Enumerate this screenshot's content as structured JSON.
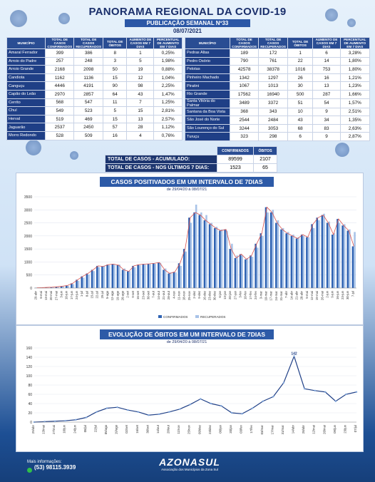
{
  "header": {
    "title": "PANORAMA REGIONAL DA COVID-19",
    "publication": "PUBLICAÇÃO SEMANAL Nº33",
    "date": "08/07/2021"
  },
  "table_headers": [
    "MUNICÍPIO",
    "TOTAL DE CASOS CONFIRMADOS",
    "TOTAL DE CASOS RECUPERADOS",
    "TOTAL DE ÓBITOS",
    "AUMENTO DE CASOS EM 7 DIAS",
    "PERCENTUAL DE AUMENTO EM 7 DIAS"
  ],
  "table_left": [
    [
      "Amaral Ferrador",
      "399",
      "386",
      "8",
      "1",
      "0,25%"
    ],
    [
      "Arroio do Padre",
      "257",
      "248",
      "3",
      "5",
      "1,98%"
    ],
    [
      "Arroio Grande",
      "2168",
      "2098",
      "50",
      "19",
      "0,88%"
    ],
    [
      "Candiota",
      "1162",
      "1136",
      "15",
      "12",
      "1,04%"
    ],
    [
      "Canguçu",
      "4446",
      "4191",
      "90",
      "98",
      "2,25%"
    ],
    [
      "Capão do Leão",
      "2970",
      "2857",
      "64",
      "43",
      "1,47%"
    ],
    [
      "Cerrito",
      "568",
      "547",
      "11",
      "7",
      "1,25%"
    ],
    [
      "Chuí",
      "549",
      "523",
      "5",
      "15",
      "2,81%"
    ],
    [
      "Herval",
      "519",
      "469",
      "15",
      "13",
      "2,57%"
    ],
    [
      "Jaguarão",
      "2537",
      "2450",
      "57",
      "28",
      "1,12%"
    ],
    [
      "Morro Redondo",
      "528",
      "509",
      "16",
      "4",
      "0,76%"
    ]
  ],
  "table_right": [
    [
      "Pedras Altas",
      "189",
      "172",
      "1",
      "6",
      "3,28%"
    ],
    [
      "Pedro Osório",
      "790",
      "761",
      "22",
      "14",
      "1,80%"
    ],
    [
      "Pelotas",
      "42578",
      "38378",
      "1016",
      "753",
      "1,80%"
    ],
    [
      "Pinheiro Machado",
      "1342",
      "1297",
      "26",
      "16",
      "1,21%"
    ],
    [
      "Piratini",
      "1067",
      "1013",
      "30",
      "13",
      "1,23%"
    ],
    [
      "Rio Grande",
      "17562",
      "16940",
      "500",
      "287",
      "1,66%"
    ],
    [
      "Santa Vitória do Palmar",
      "3489",
      "3372",
      "51",
      "54",
      "1,57%"
    ],
    [
      "Santana da Boa Vista",
      "368",
      "343",
      "10",
      "9",
      "2,51%"
    ],
    [
      "São José do Norte",
      "2544",
      "2484",
      "43",
      "34",
      "1,35%"
    ],
    [
      "São Lourenço do Sul",
      "3244",
      "3053",
      "68",
      "83",
      "2,63%"
    ],
    [
      "Turuçu",
      "323",
      "298",
      "6",
      "9",
      "2,87%"
    ]
  ],
  "totals": {
    "col_confirmed": "CONFIRMADOS",
    "col_deaths": "ÓBITOS",
    "row1_label": "TOTAL DE CASOS - ACUMULADO:",
    "row1_confirmed": "89599",
    "row1_deaths": "2107",
    "row2_label": "TOTAL DE CASOS - NOS ÚLTIMOS 7 DIAS:",
    "row2_confirmed": "1523",
    "row2_deaths": "65"
  },
  "chart_data": [
    {
      "type": "bar",
      "title": "CASOS POSITIVADOS EM UM INTERVALO DE 7DIAS",
      "subtitle": "de 29/04/20 à 08/07/21",
      "ylim": [
        0,
        3500
      ],
      "yticks": [
        0,
        500,
        1000,
        1500,
        2000,
        2500,
        3000,
        3500
      ],
      "categories": [
        "29-abr",
        "6-mai",
        "13-mai",
        "20-mai",
        "27-mai",
        "3-jun",
        "10-jun",
        "17-jun",
        "24-jun",
        "1-jul",
        "8-jul",
        "15-jul",
        "22-jul",
        "29-jul",
        "5-ago",
        "12-ago",
        "19-ago",
        "26-ago",
        "2-set",
        "9-set",
        "16-set",
        "23-set",
        "30-set",
        "7-out",
        "14-out",
        "21-out",
        "28-out",
        "4-nov",
        "11-nov",
        "18-nov",
        "25-nov",
        "2-dez",
        "9-dez",
        "16-dez",
        "23-dez",
        "30-dez",
        "6-jan",
        "13-jan",
        "20-jan",
        "27-jan",
        "3-fev",
        "10-fev",
        "17-fev",
        "24-fev",
        "3-mar",
        "10-mar",
        "17-mar",
        "24-mar",
        "31-mar",
        "7-abr",
        "14-abr",
        "21-abr",
        "28-abr",
        "5-mai",
        "12-mai",
        "19-mai",
        "26-mai",
        "2-jun",
        "9-jun",
        "16-jun",
        "23-jun",
        "30-jun",
        "7-jul"
      ],
      "series": [
        {
          "name": "CONFIRMADOS",
          "color": "#2f63b3",
          "values": [
            10,
            15,
            25,
            35,
            50,
            70,
            100,
            180,
            320,
            450,
            560,
            700,
            850,
            830,
            900,
            920,
            880,
            700,
            640,
            850,
            900,
            920,
            930,
            950,
            980,
            700,
            560,
            620,
            950,
            1500,
            2700,
            2900,
            2800,
            2600,
            2450,
            2300,
            2200,
            2250,
            1500,
            1150,
            1300,
            1100,
            1250,
            1700,
            2100,
            3100,
            2900,
            2500,
            2250,
            2100,
            2000,
            1900,
            2050,
            1950,
            2450,
            2700,
            2800,
            2500,
            2050,
            2650,
            2400,
            2200,
            1600
          ]
        },
        {
          "name": "RECUPERADOS",
          "color": "#a8c3e8",
          "values": [
            5,
            10,
            18,
            28,
            40,
            60,
            85,
            150,
            280,
            400,
            520,
            650,
            800,
            850,
            880,
            900,
            900,
            750,
            650,
            800,
            880,
            900,
            920,
            930,
            960,
            750,
            600,
            600,
            850,
            1400,
            2500,
            3200,
            2900,
            2800,
            2500,
            2350,
            2250,
            2200,
            1700,
            1250,
            1250,
            1150,
            1200,
            1550,
            2000,
            2900,
            3000,
            2600,
            2300,
            2150,
            2050,
            1950,
            2000,
            1950,
            2300,
            2600,
            2850,
            2550,
            2100,
            2500,
            2450,
            2250,
            2150
          ]
        }
      ],
      "legend": [
        "CONFIRMADOS",
        "RECUPERADOS"
      ],
      "legend_position": "bottom"
    },
    {
      "type": "line",
      "title": "EVOLUÇÃO DE ÓBITOS EM UM INTERVALO DE 7DIAS",
      "subtitle": "de 29/04/20 à 08/07/21",
      "ylim": [
        0,
        160
      ],
      "yticks": [
        0,
        20,
        40,
        60,
        80,
        100,
        120,
        140,
        160
      ],
      "peak_label": "142",
      "categories": [
        "29/abr",
        "13/mai",
        "27/mai",
        "10/jun",
        "24/jun",
        "08/jul",
        "22/jul",
        "05/ago",
        "19/ago",
        "02/set",
        "16/set",
        "30/set",
        "14/out",
        "28/out",
        "11/nov",
        "25/nov",
        "09/dez",
        "23/dez",
        "06/jan",
        "20/jan",
        "03/fev",
        "17/fev",
        "03/mar",
        "17/mar",
        "31/mar",
        "14/abr",
        "28/abr",
        "12/mai",
        "26/mai",
        "09/jun",
        "23/jun",
        "07/jul"
      ],
      "values": [
        0,
        1,
        2,
        3,
        5,
        10,
        22,
        30,
        32,
        26,
        22,
        15,
        17,
        22,
        28,
        38,
        50,
        40,
        35,
        20,
        18,
        30,
        45,
        55,
        85,
        142,
        72,
        68,
        65,
        45,
        60,
        65
      ]
    }
  ],
  "footer": {
    "info_label": "Mais informações:",
    "phone": "(53) 98115.3939",
    "logo": "AZONASUL",
    "logo_sub": "Associação dos Municípios da Zona Sul"
  }
}
